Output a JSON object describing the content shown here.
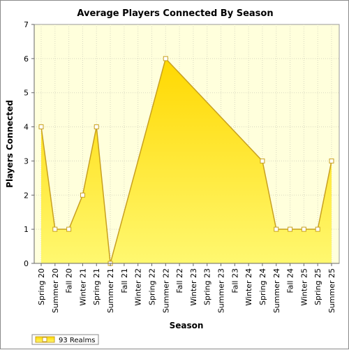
{
  "chart_data": {
    "type": "area",
    "title": "Average Players Connected By Season",
    "xlabel": "Season",
    "ylabel": "Players Connected",
    "categories": [
      "Spring 20",
      "Summer 20",
      "Fall 20",
      "Winter 21",
      "Spring 21",
      "Summer 21",
      "Fall 21",
      "Winter 22",
      "Spring 22",
      "Summer 22",
      "Fall 22",
      "Winter 23",
      "Spring 23",
      "Summer 23",
      "Fall 23",
      "Winter 24",
      "Spring 24",
      "Summer 24",
      "Fall 24",
      "Winter 25",
      "Spring 25",
      "Summer 25"
    ],
    "yticks": [
      "0",
      "1",
      "2",
      "3",
      "4",
      "5",
      "6",
      "7"
    ],
    "ylim": [
      0,
      7
    ],
    "series": [
      {
        "name": "93 Realms",
        "values": [
          4,
          1,
          1,
          2,
          4,
          0,
          null,
          null,
          null,
          6,
          null,
          null,
          null,
          null,
          null,
          null,
          3,
          1,
          1,
          1,
          1,
          3
        ]
      }
    ],
    "grid": true,
    "legend": "bottom-left",
    "colors": {
      "plot_background": "#ffffdc",
      "fill_top": "#ffd800",
      "fill_bottom": "#fff870",
      "line": "#c8a020",
      "marker_fill": "#ffffff"
    }
  }
}
